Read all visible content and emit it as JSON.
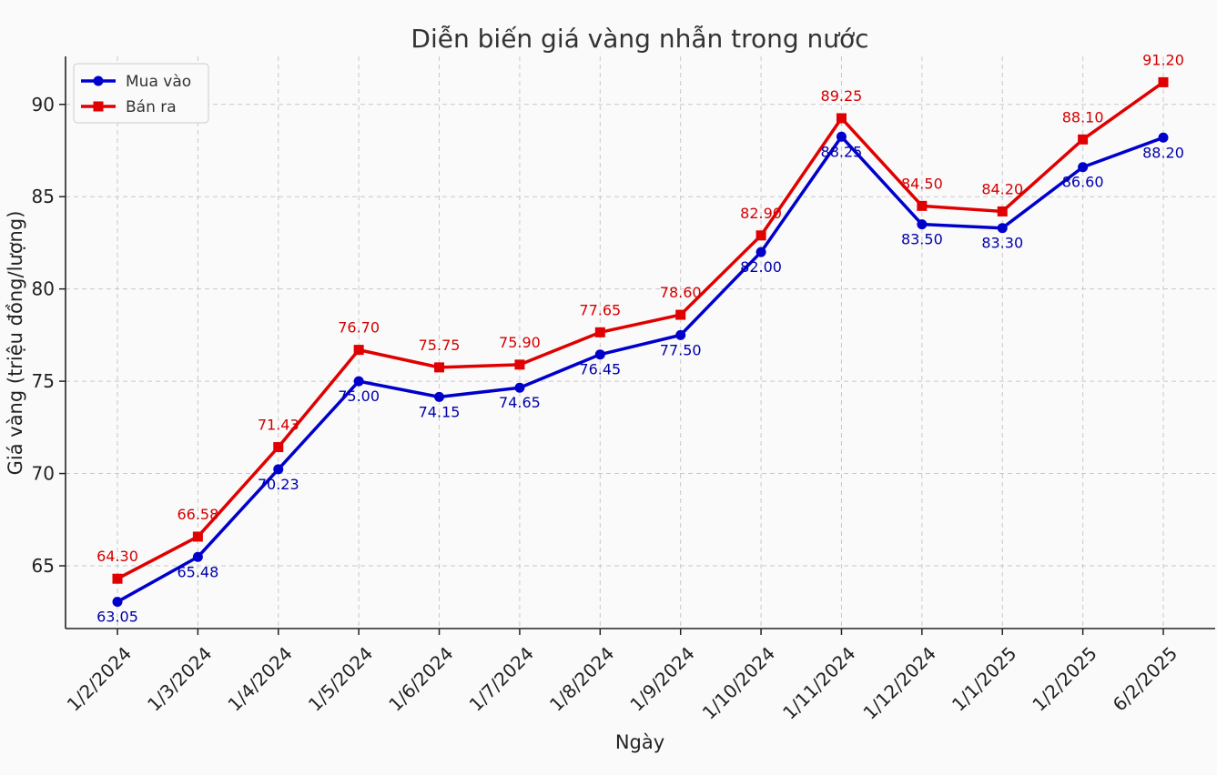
{
  "chart_data": {
    "type": "line",
    "title": "Diễn biến giá vàng nhẫn trong nước",
    "xlabel": "Ngày",
    "ylabel": "Giá vàng (triệu đồng/lượng)",
    "categories": [
      "1/2/2024",
      "1/3/2024",
      "1/4/2024",
      "1/5/2024",
      "1/6/2024",
      "1/7/2024",
      "1/8/2024",
      "1/9/2024",
      "1/10/2024",
      "1/11/2024",
      "1/12/2024",
      "1/1/2025",
      "1/2/2025",
      "6/2/2025"
    ],
    "series": [
      {
        "name": "Mua vào",
        "color": "#0000cc",
        "label_color": "#0000aa",
        "marker": "circle",
        "values": [
          63.05,
          65.48,
          70.23,
          75.0,
          74.15,
          74.65,
          76.45,
          77.5,
          82.0,
          88.25,
          83.5,
          83.3,
          86.6,
          88.2
        ],
        "value_labels": [
          "63.05",
          "65.48",
          "70.23",
          "75.00",
          "74.15",
          "74.65",
          "76.45",
          "77.50",
          "82.00",
          "88.25",
          "83.50",
          "83.30",
          "86.60",
          "88.20"
        ]
      },
      {
        "name": "Bán ra",
        "color": "#e00000",
        "label_color": "#d40000",
        "marker": "square",
        "values": [
          64.3,
          66.58,
          71.43,
          76.7,
          75.75,
          75.9,
          77.65,
          78.6,
          82.9,
          89.25,
          84.5,
          84.2,
          88.1,
          91.2
        ],
        "value_labels": [
          "64.30",
          "66.58",
          "71.43",
          "76.70",
          "75.75",
          "75.90",
          "77.65",
          "78.60",
          "82.90",
          "89.25",
          "84.50",
          "84.20",
          "88.10",
          "91.20"
        ]
      }
    ],
    "ylim": [
      61.6,
      92.6
    ],
    "yticks": [
      "65",
      "70",
      "75",
      "80",
      "85",
      "90"
    ],
    "grid": true,
    "legend_position": "top-left"
  }
}
